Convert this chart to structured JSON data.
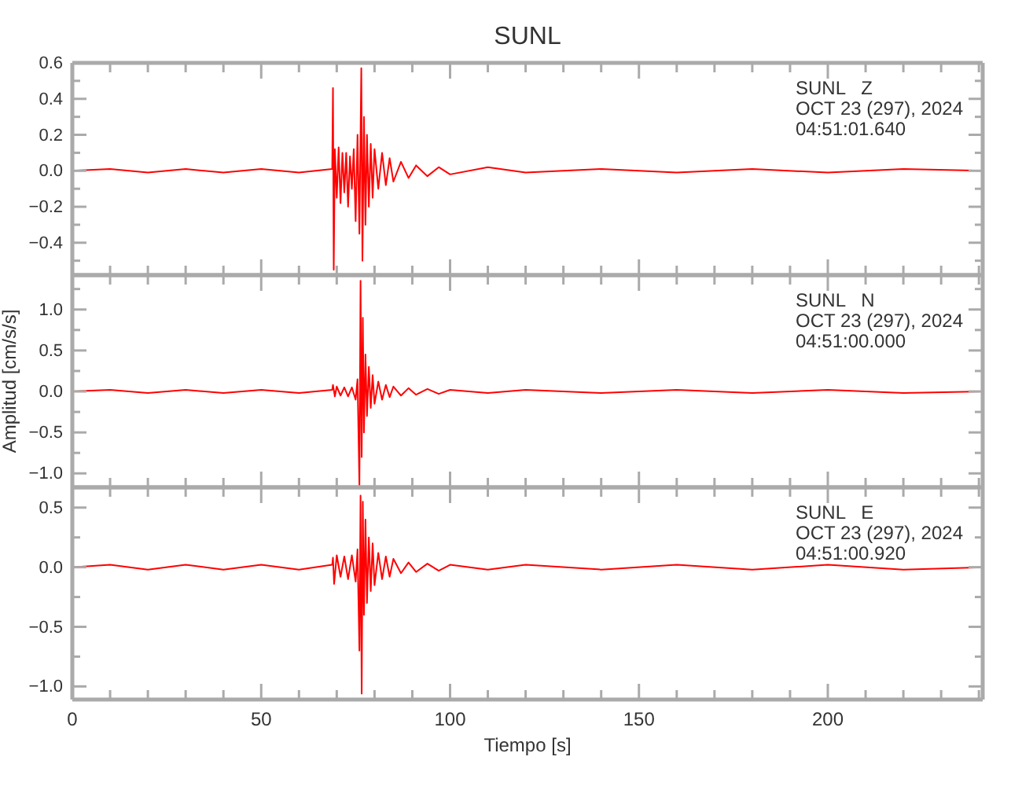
{
  "chart_data": [
    {
      "type": "line",
      "title": "SUNL",
      "tick_labels": "y",
      "color": "#ff0000",
      "annotations": [
        "SUNL   Z",
        "OCT 23 (297), 2024",
        "04:51:01.640"
      ],
      "xlim": [
        0,
        241
      ],
      "xticks": [
        0,
        {
          "value": 10,
          "label": null
        },
        {
          "value": 20,
          "label": null
        },
        {
          "value": 30,
          "label": null
        },
        {
          "value": 40,
          "label": null
        },
        50,
        {
          "value": 60,
          "label": null
        },
        {
          "value": 70,
          "label": null
        },
        {
          "value": 80,
          "label": null
        },
        {
          "value": 90,
          "label": null
        },
        100,
        {
          "value": 110,
          "label": null
        },
        {
          "value": 120,
          "label": null
        },
        {
          "value": 130,
          "label": null
        },
        {
          "value": 140,
          "label": null
        },
        150,
        {
          "value": 160,
          "label": null
        },
        {
          "value": 170,
          "label": null
        },
        {
          "value": 180,
          "label": null
        },
        {
          "value": 190,
          "label": null
        },
        200,
        {
          "value": 210,
          "label": null
        },
        {
          "value": 220,
          "label": null
        },
        {
          "value": 230,
          "label": null
        },
        {
          "value": 240,
          "label": null
        }
      ],
      "ylim": [
        -0.58,
        0.6
      ],
      "yticks": [
        {
          "value": -0.5,
          "label": null
        },
        {
          "value": -0.4,
          "label": "−0.4"
        },
        {
          "value": -0.3,
          "label": null
        },
        {
          "value": -0.2,
          "label": "−0.2"
        },
        {
          "value": -0.1,
          "label": null
        },
        {
          "value": 0,
          "label": "0.0"
        },
        {
          "value": 0.1,
          "label": null
        },
        {
          "value": 0.2,
          "label": "0.2"
        },
        {
          "value": 0.3,
          "label": null
        },
        {
          "value": 0.4,
          "label": "0.4"
        },
        {
          "value": 0.5,
          "label": null
        },
        {
          "value": 0.6,
          "label": "0.6"
        }
      ],
      "x": [
        0,
        10,
        20,
        30,
        40,
        50,
        60,
        68.8,
        69,
        69.2,
        69.5,
        70,
        70.5,
        71,
        71.5,
        72,
        72.5,
        73,
        73.5,
        74,
        74.5,
        75,
        75.5,
        76,
        76.5,
        76.8,
        77.2,
        77.6,
        78,
        78.5,
        79,
        79.5,
        80,
        81,
        82,
        83,
        84,
        85,
        87,
        89,
        91,
        94,
        97,
        100,
        110,
        120,
        140,
        160,
        180,
        200,
        220,
        241
      ],
      "values": [
        0,
        0.01,
        -0.01,
        0.01,
        -0.01,
        0.01,
        -0.01,
        0.01,
        0.46,
        -0.55,
        0.12,
        -0.15,
        0.13,
        -0.18,
        0.1,
        -0.12,
        0.1,
        -0.2,
        0.08,
        -0.1,
        0.12,
        -0.28,
        0.2,
        -0.35,
        0.57,
        -0.5,
        0.3,
        -0.3,
        0.2,
        -0.2,
        0.15,
        -0.15,
        0.12,
        -0.1,
        0.1,
        -0.08,
        0.07,
        -0.06,
        0.05,
        -0.04,
        0.03,
        -0.03,
        0.02,
        -0.02,
        0.02,
        -0.01,
        0.01,
        -0.01,
        0.01,
        -0.01,
        0.01,
        0
      ]
    },
    {
      "type": "line",
      "ylabel": "Amplitud [cm/s/s]",
      "tick_labels": "y",
      "color": "#ff0000",
      "annotations": [
        "SUNL   N",
        "OCT 23 (297), 2024",
        "04:51:00.000"
      ],
      "xlim": [
        0,
        241
      ],
      "xticks": [
        0,
        {
          "value": 10,
          "label": null
        },
        {
          "value": 20,
          "label": null
        },
        {
          "value": 30,
          "label": null
        },
        {
          "value": 40,
          "label": null
        },
        50,
        {
          "value": 60,
          "label": null
        },
        {
          "value": 70,
          "label": null
        },
        {
          "value": 80,
          "label": null
        },
        {
          "value": 90,
          "label": null
        },
        100,
        {
          "value": 110,
          "label": null
        },
        {
          "value": 120,
          "label": null
        },
        {
          "value": 130,
          "label": null
        },
        {
          "value": 140,
          "label": null
        },
        150,
        {
          "value": 160,
          "label": null
        },
        {
          "value": 170,
          "label": null
        },
        {
          "value": 180,
          "label": null
        },
        {
          "value": 190,
          "label": null
        },
        200,
        {
          "value": 210,
          "label": null
        },
        {
          "value": 220,
          "label": null
        },
        {
          "value": 230,
          "label": null
        },
        {
          "value": 240,
          "label": null
        }
      ],
      "ylim": [
        -1.17,
        1.42
      ],
      "yticks": [
        {
          "value": -1,
          "label": "−1.0"
        },
        {
          "value": -0.75,
          "label": null
        },
        {
          "value": -0.5,
          "label": "−0.5"
        },
        {
          "value": -0.25,
          "label": null
        },
        {
          "value": 0,
          "label": "0.0"
        },
        {
          "value": 0.25,
          "label": null
        },
        {
          "value": 0.5,
          "label": "0.5"
        },
        {
          "value": 0.75,
          "label": null
        },
        {
          "value": 1,
          "label": "1.0"
        },
        {
          "value": 1.25,
          "label": null
        }
      ],
      "x": [
        0,
        10,
        20,
        30,
        40,
        50,
        60,
        68.8,
        69,
        69.5,
        70,
        71,
        72,
        73,
        74,
        75,
        75.5,
        76,
        76.3,
        76.6,
        76.9,
        77.2,
        77.6,
        78,
        78.5,
        79,
        79.5,
        80,
        81,
        82,
        83,
        84,
        85,
        87,
        89,
        91,
        94,
        97,
        100,
        110,
        120,
        140,
        160,
        180,
        200,
        220,
        241
      ],
      "values": [
        0,
        0.02,
        -0.02,
        0.02,
        -0.02,
        0.02,
        -0.02,
        0.02,
        0.08,
        -0.06,
        0.06,
        -0.05,
        0.05,
        -0.06,
        0.05,
        -0.1,
        0.15,
        -1.15,
        1.35,
        -0.8,
        0.9,
        -0.5,
        0.45,
        -0.3,
        0.3,
        -0.2,
        0.2,
        -0.15,
        0.12,
        -0.1,
        0.08,
        -0.07,
        0.06,
        -0.05,
        0.04,
        -0.04,
        0.03,
        -0.03,
        0.02,
        -0.02,
        0.02,
        -0.02,
        0.02,
        -0.02,
        0.02,
        -0.02,
        0
      ]
    },
    {
      "type": "line",
      "xlabel": "Tiempo [s]",
      "color": "#ff0000",
      "annotations": [
        "SUNL   E",
        "OCT 23 (297), 2024",
        "04:51:00.920"
      ],
      "xlim": [
        0,
        241
      ],
      "xticks": [
        0,
        {
          "value": 10,
          "label": null
        },
        {
          "value": 20,
          "label": null
        },
        {
          "value": 30,
          "label": null
        },
        {
          "value": 40,
          "label": null
        },
        50,
        {
          "value": 60,
          "label": null
        },
        {
          "value": 70,
          "label": null
        },
        {
          "value": 80,
          "label": null
        },
        {
          "value": 90,
          "label": null
        },
        100,
        {
          "value": 110,
          "label": null
        },
        {
          "value": 120,
          "label": null
        },
        {
          "value": 130,
          "label": null
        },
        {
          "value": 140,
          "label": null
        },
        150,
        {
          "value": 160,
          "label": null
        },
        {
          "value": 170,
          "label": null
        },
        {
          "value": 180,
          "label": null
        },
        {
          "value": 190,
          "label": null
        },
        200,
        {
          "value": 210,
          "label": null
        },
        {
          "value": 220,
          "label": null
        },
        {
          "value": 230,
          "label": null
        },
        {
          "value": 240,
          "label": null
        }
      ],
      "ylim": [
        -1.11,
        0.67
      ],
      "yticks": [
        {
          "value": -1,
          "label": "−1.0"
        },
        {
          "value": -0.75,
          "label": null
        },
        {
          "value": -0.5,
          "label": "−0.5"
        },
        {
          "value": -0.25,
          "label": null
        },
        {
          "value": 0,
          "label": "0.0"
        },
        {
          "value": 0.25,
          "label": null
        },
        {
          "value": 0.5,
          "label": "0.5"
        }
      ],
      "x": [
        0,
        10,
        20,
        30,
        40,
        50,
        60,
        68.8,
        69,
        69.3,
        70,
        71,
        72,
        73,
        74,
        75,
        75.5,
        76,
        76.3,
        76.6,
        76.9,
        77.2,
        77.6,
        78,
        78.5,
        79,
        79.5,
        80,
        81,
        82,
        83,
        84,
        85,
        87,
        89,
        91,
        94,
        97,
        100,
        110,
        120,
        140,
        160,
        180,
        200,
        220,
        241
      ],
      "values": [
        0,
        0.02,
        -0.02,
        0.02,
        -0.02,
        0.02,
        -0.02,
        0.02,
        0.08,
        -0.14,
        0.1,
        -0.08,
        0.09,
        -0.1,
        0.1,
        -0.12,
        0.15,
        -0.7,
        0.6,
        -1.06,
        0.55,
        -0.4,
        0.4,
        -0.3,
        0.25,
        -0.2,
        0.2,
        -0.15,
        0.12,
        -0.1,
        0.09,
        -0.08,
        0.07,
        -0.05,
        0.04,
        -0.04,
        0.03,
        -0.03,
        0.02,
        -0.02,
        0.02,
        -0.02,
        0.02,
        -0.02,
        0.02,
        -0.02,
        0
      ]
    }
  ]
}
